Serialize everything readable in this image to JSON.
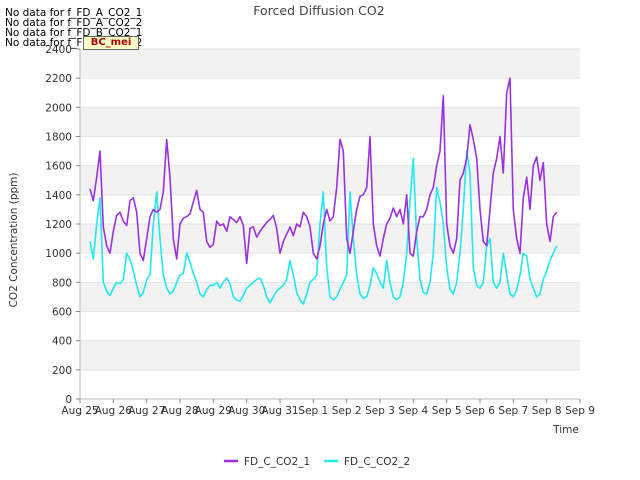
{
  "notices": [
    "No data for f_FD_A_CO2_1",
    "No data for f_FD_A_CO2_2",
    "No data for f_FD_B_CO2_1",
    "No data for f_FD_B_CO2_2"
  ],
  "badge": "BC_mei",
  "chart_data": {
    "type": "line",
    "title": "Forced Diffusion CO2",
    "xlabel": "Time",
    "ylabel": "CO2 Concentration (ppm)",
    "ylim": [
      0,
      2400
    ],
    "yticks": [
      0,
      200,
      400,
      600,
      800,
      1000,
      1200,
      1400,
      1600,
      1800,
      2000,
      2200,
      2400
    ],
    "xlim": [
      0,
      15
    ],
    "xtick_labels": [
      "Aug 25",
      "Aug 26",
      "Aug 27",
      "Aug 28",
      "Aug 29",
      "Aug 30",
      "Aug 31",
      "Sep 1",
      "Sep 2",
      "Sep 3",
      "Sep 4",
      "Sep 5",
      "Sep 6",
      "Sep 7",
      "Sep 8",
      "Sep 9"
    ],
    "grid": "horizontal bands",
    "legend": "bottom-center",
    "series": [
      {
        "name": "FD_C_CO2_1",
        "color": "#9b30e0",
        "x": [
          0.3,
          0.4,
          0.5,
          0.6,
          0.7,
          0.8,
          0.9,
          1.0,
          1.1,
          1.2,
          1.3,
          1.4,
          1.5,
          1.6,
          1.7,
          1.8,
          1.9,
          2.0,
          2.1,
          2.2,
          2.3,
          2.4,
          2.5,
          2.6,
          2.7,
          2.8,
          2.9,
          3.0,
          3.1,
          3.2,
          3.3,
          3.4,
          3.5,
          3.6,
          3.7,
          3.8,
          3.9,
          4.0,
          4.1,
          4.2,
          4.3,
          4.4,
          4.5,
          4.6,
          4.7,
          4.8,
          4.9,
          5.0,
          5.1,
          5.2,
          5.3,
          5.4,
          5.5,
          5.6,
          5.7,
          5.8,
          5.9,
          6.0,
          6.1,
          6.2,
          6.3,
          6.4,
          6.5,
          6.6,
          6.7,
          6.8,
          6.9,
          7.0,
          7.1,
          7.2,
          7.3,
          7.4,
          7.5,
          7.6,
          7.7,
          7.8,
          7.9,
          8.0,
          8.1,
          8.2,
          8.3,
          8.4,
          8.5,
          8.6,
          8.7,
          8.8,
          8.9,
          9.0,
          9.1,
          9.2,
          9.3,
          9.4,
          9.5,
          9.6,
          9.7,
          9.8,
          9.9,
          10.0,
          10.1,
          10.2,
          10.3,
          10.4,
          10.5,
          10.6,
          10.7,
          10.8,
          10.9,
          11.0,
          11.1,
          11.2,
          11.3,
          11.4,
          11.5,
          11.6,
          11.7,
          11.8,
          11.9,
          12.0,
          12.1,
          12.2,
          12.3,
          12.4,
          12.5,
          12.6,
          12.7,
          12.8,
          12.9,
          13.0,
          13.1,
          13.2,
          13.3,
          13.4,
          13.5,
          13.6,
          13.7,
          13.8,
          13.9,
          14.0,
          14.1,
          14.2,
          14.3
        ],
        "values": [
          1440,
          1360,
          1520,
          1700,
          1180,
          1050,
          1000,
          1150,
          1260,
          1280,
          1220,
          1190,
          1360,
          1380,
          1280,
          1000,
          950,
          1100,
          1250,
          1300,
          1280,
          1300,
          1420,
          1780,
          1520,
          1100,
          960,
          1200,
          1240,
          1250,
          1270,
          1350,
          1430,
          1300,
          1280,
          1080,
          1040,
          1060,
          1220,
          1190,
          1200,
          1150,
          1250,
          1230,
          1210,
          1250,
          1190,
          930,
          1170,
          1180,
          1110,
          1150,
          1180,
          1210,
          1230,
          1260,
          1170,
          1000,
          1080,
          1130,
          1180,
          1120,
          1200,
          1180,
          1280,
          1250,
          1180,
          1000,
          960,
          1050,
          1200,
          1300,
          1220,
          1250,
          1450,
          1780,
          1700,
          1100,
          1000,
          1150,
          1300,
          1390,
          1400,
          1450,
          1800,
          1200,
          1050,
          980,
          1100,
          1200,
          1240,
          1310,
          1250,
          1300,
          1200,
          1400,
          1000,
          980,
          1150,
          1250,
          1250,
          1300,
          1400,
          1450,
          1600,
          1700,
          2080,
          1200,
          1050,
          1000,
          1100,
          1500,
          1550,
          1650,
          1880,
          1780,
          1650,
          1300,
          1080,
          1050,
          1300,
          1550,
          1650,
          1800,
          1550,
          2100,
          2200,
          1300,
          1100,
          1000,
          1380,
          1520,
          1300,
          1600,
          1660,
          1500,
          1620,
          1200,
          1080,
          1250,
          1280
        ]
      },
      {
        "name": "FD_C_CO2_2",
        "color": "#22e8f0",
        "x": [
          0.3,
          0.4,
          0.5,
          0.6,
          0.7,
          0.8,
          0.9,
          1.0,
          1.1,
          1.2,
          1.3,
          1.4,
          1.5,
          1.6,
          1.7,
          1.8,
          1.9,
          2.0,
          2.1,
          2.2,
          2.3,
          2.4,
          2.5,
          2.6,
          2.7,
          2.8,
          2.9,
          3.0,
          3.1,
          3.2,
          3.3,
          3.4,
          3.5,
          3.6,
          3.7,
          3.8,
          3.9,
          4.0,
          4.1,
          4.2,
          4.3,
          4.4,
          4.5,
          4.6,
          4.7,
          4.8,
          4.9,
          5.0,
          5.1,
          5.2,
          5.3,
          5.4,
          5.5,
          5.6,
          5.7,
          5.8,
          5.9,
          6.0,
          6.1,
          6.2,
          6.3,
          6.4,
          6.5,
          6.6,
          6.7,
          6.8,
          6.9,
          7.0,
          7.1,
          7.2,
          7.3,
          7.4,
          7.5,
          7.6,
          7.7,
          7.8,
          7.9,
          8.0,
          8.1,
          8.2,
          8.3,
          8.4,
          8.5,
          8.6,
          8.7,
          8.8,
          8.9,
          9.0,
          9.1,
          9.2,
          9.3,
          9.4,
          9.5,
          9.6,
          9.7,
          9.8,
          9.9,
          10.0,
          10.1,
          10.2,
          10.3,
          10.4,
          10.5,
          10.6,
          10.7,
          10.8,
          10.9,
          11.0,
          11.1,
          11.2,
          11.3,
          11.4,
          11.5,
          11.6,
          11.7,
          11.8,
          11.9,
          12.0,
          12.1,
          12.2,
          12.3,
          12.4,
          12.5,
          12.6,
          12.7,
          12.8,
          12.9,
          13.0,
          13.1,
          13.2,
          13.3,
          13.4,
          13.5,
          13.6,
          13.7,
          13.8,
          13.9,
          14.0,
          14.1,
          14.2,
          14.3
        ],
        "values": [
          1080,
          960,
          1200,
          1380,
          800,
          740,
          710,
          760,
          800,
          790,
          820,
          1000,
          960,
          880,
          780,
          700,
          730,
          820,
          850,
          1200,
          1420,
          1100,
          850,
          760,
          720,
          740,
          800,
          850,
          860,
          1000,
          940,
          860,
          800,
          720,
          700,
          750,
          780,
          780,
          800,
          760,
          800,
          830,
          790,
          700,
          680,
          670,
          710,
          760,
          780,
          800,
          820,
          830,
          780,
          700,
          660,
          700,
          740,
          760,
          780,
          820,
          950,
          850,
          730,
          680,
          650,
          720,
          800,
          820,
          850,
          1200,
          1420,
          900,
          700,
          680,
          700,
          750,
          800,
          850,
          1420,
          1100,
          850,
          720,
          690,
          700,
          780,
          900,
          860,
          800,
          760,
          950,
          800,
          700,
          680,
          700,
          800,
          1000,
          1350,
          1650,
          1100,
          820,
          730,
          720,
          800,
          1000,
          1450,
          1350,
          1200,
          900,
          750,
          720,
          800,
          1000,
          1300,
          1700,
          1550,
          900,
          780,
          760,
          800,
          1050,
          1100,
          800,
          760,
          800,
          1000,
          850,
          720,
          700,
          750,
          850,
          1000,
          980,
          820,
          760,
          700,
          720,
          820,
          880,
          950,
          1000,
          1050
        ]
      }
    ]
  }
}
